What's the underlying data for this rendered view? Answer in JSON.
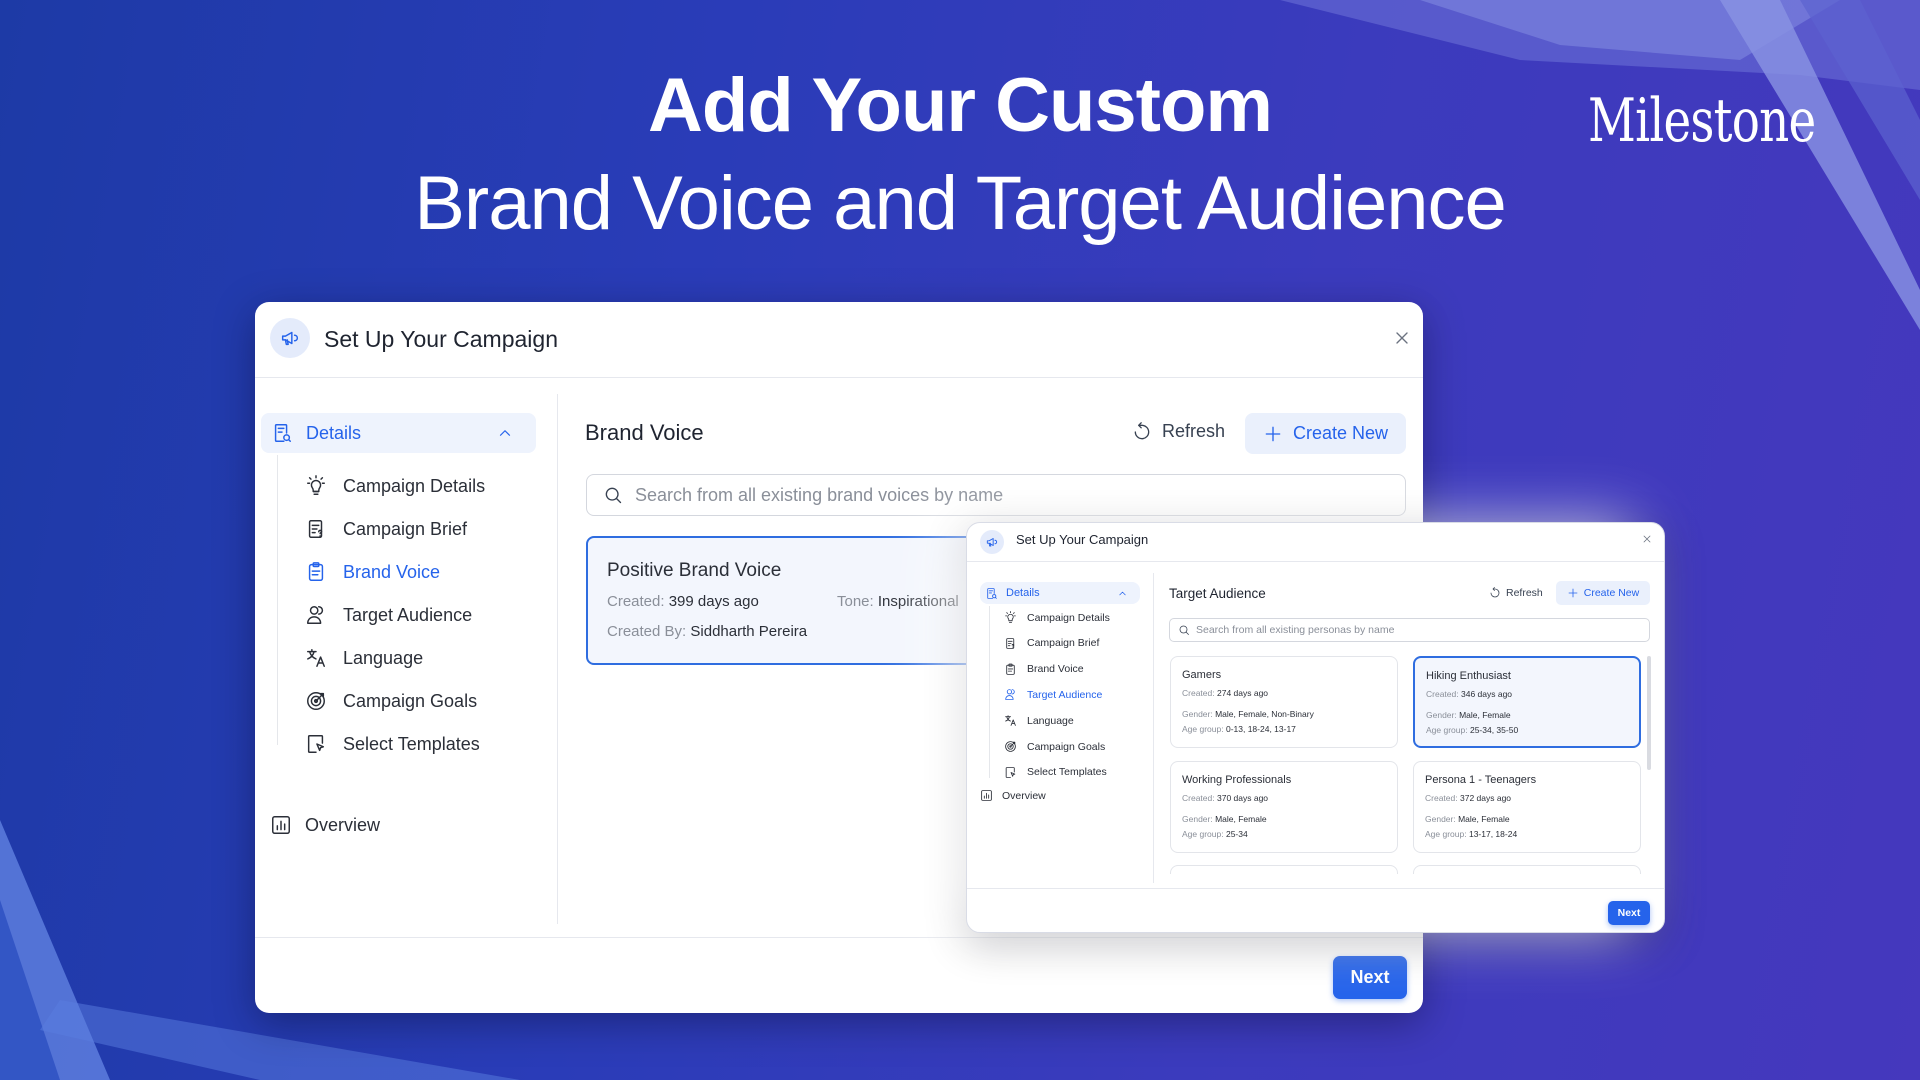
{
  "headline": {
    "line1": "Add Your Custom",
    "line2": "Brand Voice and Target Audience"
  },
  "logo": {
    "text": "Milestone"
  },
  "colors": {
    "accent": "#2563eb",
    "background": "#3a3bbd"
  },
  "main_window": {
    "title": "Set Up Your Campaign",
    "sidebar": {
      "group": "Details",
      "items": [
        {
          "label": "Campaign Details",
          "icon": "bulb-icon"
        },
        {
          "label": "Campaign Brief",
          "icon": "brief-icon"
        },
        {
          "label": "Brand Voice",
          "icon": "clipboard-icon",
          "active": true
        },
        {
          "label": "Target Audience",
          "icon": "users-icon"
        },
        {
          "label": "Language",
          "icon": "language-icon"
        },
        {
          "label": "Campaign Goals",
          "icon": "target-icon"
        },
        {
          "label": "Select Templates",
          "icon": "template-icon"
        }
      ],
      "overview": "Overview"
    },
    "section_title": "Brand Voice",
    "refresh": "Refresh",
    "create_new": "Create New",
    "search_placeholder": "Search from all existing brand voices by name",
    "card": {
      "name": "Positive Brand Voice",
      "created_label": "Created:",
      "created": "399 days ago",
      "tone_label": "Tone:",
      "tone": "Inspirational",
      "by_label": "Created By:",
      "by": "Siddharth Pereira"
    },
    "next": "Next"
  },
  "second_window": {
    "title": "Set Up Your Campaign",
    "sidebar": {
      "group": "Details",
      "items": [
        {
          "label": "Campaign Details",
          "icon": "bulb-icon"
        },
        {
          "label": "Campaign Brief",
          "icon": "brief-icon"
        },
        {
          "label": "Brand Voice",
          "icon": "clipboard-icon"
        },
        {
          "label": "Target Audience",
          "icon": "users-icon",
          "active": true
        },
        {
          "label": "Language",
          "icon": "language-icon"
        },
        {
          "label": "Campaign Goals",
          "icon": "target-icon"
        },
        {
          "label": "Select Templates",
          "icon": "template-icon"
        }
      ],
      "overview": "Overview"
    },
    "section_title": "Target Audience",
    "refresh": "Refresh",
    "create_new": "Create New",
    "search_placeholder": "Search from all existing personas by name",
    "labels": {
      "created": "Created:",
      "gender": "Gender:",
      "age": "Age group:"
    },
    "personas": [
      {
        "name": "Gamers",
        "created": "274 days ago",
        "gender": "Male, Female, Non-Binary",
        "age": "0-13, 18-24, 13-17"
      },
      {
        "name": "Hiking Enthusiast",
        "created": "346 days ago",
        "gender": "Male, Female",
        "age": "25-34, 35-50",
        "selected": true
      },
      {
        "name": "Working Professionals",
        "created": "370 days ago",
        "gender": "Male, Female",
        "age": "25-34"
      },
      {
        "name": "Persona 1 - Teenagers",
        "created": "372 days ago",
        "gender": "Male, Female",
        "age": "13-17, 18-24"
      }
    ],
    "next": "Next"
  }
}
